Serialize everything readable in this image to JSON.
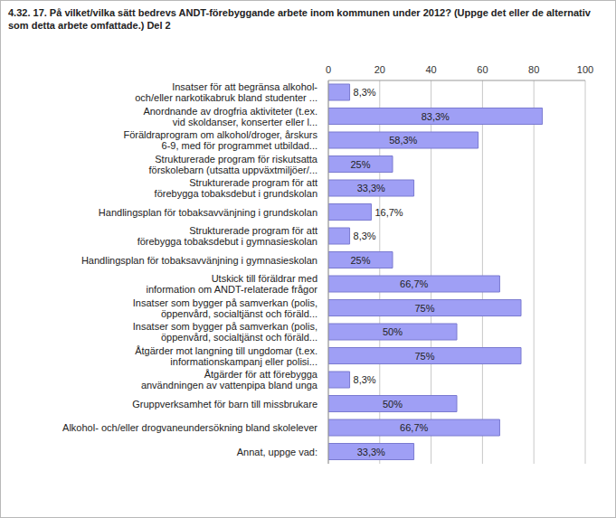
{
  "chart_data": {
    "type": "bar",
    "orientation": "horizontal",
    "title": "4.32. 17. På vilket/vilka sätt bedrevs ANDT-förebyggande arbete inom kommunen under 2012? (Uppge det eller de alternativ som detta arbete omfattade.) Del 2",
    "categories": [
      "Insatser för att begränsa alkohol-\noch/eller narkotikabruk bland studenter ...",
      "Anordnande av drogfria aktiviteter (t.ex.\nvid skoldanser, konserter eller l...",
      "Föräldraprogram om alkohol/droger, årskurs\n6-9, med för programmet utbildad...",
      "Strukturerade program för riskutsatta\nförskolebarn (utsatta uppväxtmiljöer/...",
      "Strukturerade program för att\nförebygga tobaksdebut i grundskolan",
      "Handlingsplan för tobaksavvänjning i grundskolan",
      "Strukturerade program för att\nförebygga tobaksdebut i gymnasieskolan",
      "Handlingsplan för tobaksavvänjning i gymnasieskolan",
      "Utskick till föräldrar med\ninformation om ANDT-relaterade frågor",
      "Insatser som bygger på samverkan (polis,\nöppenvård, socialtjänst och föräld...",
      "Insatser som bygger på samverkan (polis,\nöppenvård, socialtjänst och föräld...",
      "Åtgärder mot langning till ungdomar (t.ex.\ninformationskampanj eller polisi...",
      "Åtgärder för att förebygga\nanvändningen av vattenpipa bland unga",
      "Gruppverksamhet för barn till missbrukare",
      "Alkohol- och/eller drogvaneundersökning bland skolelever",
      "Annat, uppge vad:"
    ],
    "values": [
      8.3,
      83.3,
      58.3,
      25,
      33.3,
      16.7,
      8.3,
      25,
      66.7,
      75,
      50,
      75,
      8.3,
      50,
      66.7,
      33.3
    ],
    "value_labels": [
      "8,3%",
      "83,3%",
      "58,3%",
      "25%",
      "33,3%",
      "16,7%",
      "8,3%",
      "25%",
      "66,7%",
      "75%",
      "50%",
      "75%",
      "8,3%",
      "50%",
      "66,7%",
      "33,3%"
    ],
    "color": "#9f9ff5",
    "xlim": [
      0,
      100
    ],
    "xticks": [
      0,
      20,
      40,
      60,
      80,
      100
    ],
    "grid": true,
    "data_labels": true
  }
}
